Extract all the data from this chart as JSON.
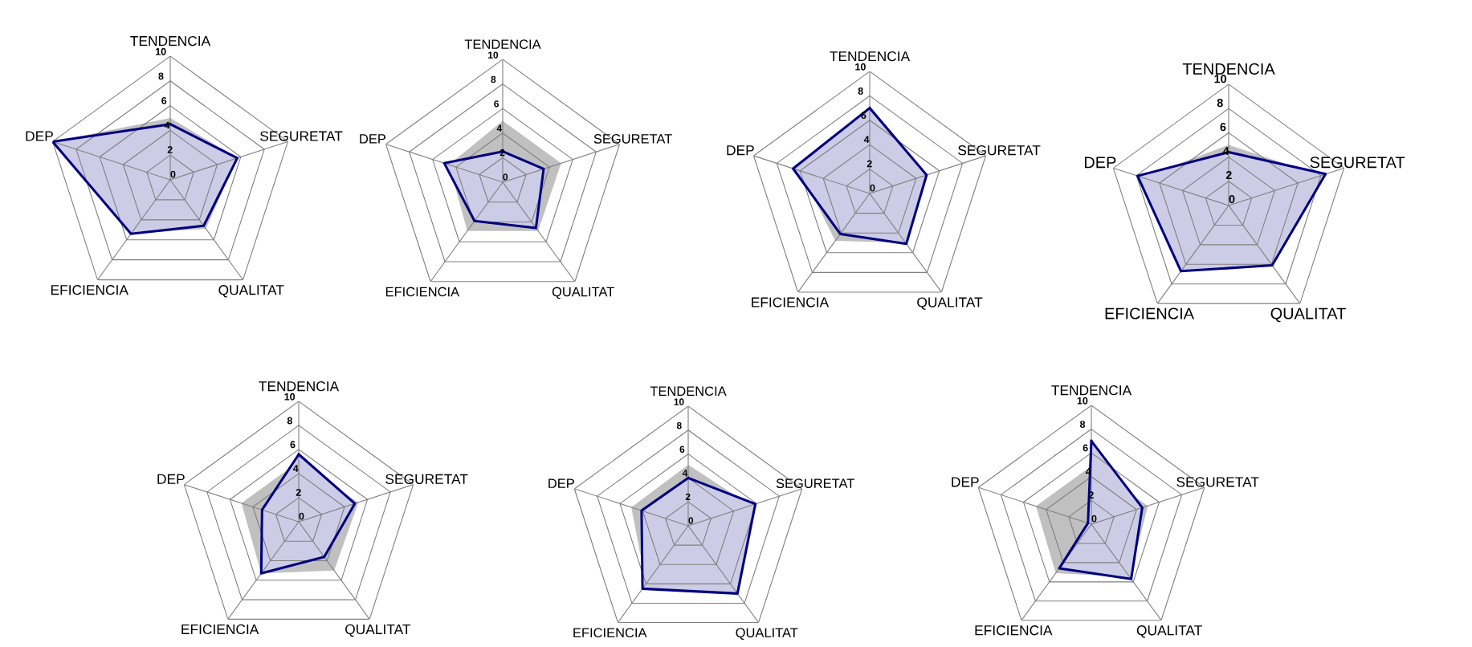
{
  "chart_data": [
    {
      "type": "radar",
      "categories": [
        "TENDENCIA",
        "SEGURETAT",
        "QUALITAT",
        "EFICIENCIA",
        "DEP"
      ],
      "ylim": [
        0,
        10
      ],
      "yticks": [
        0,
        2,
        4,
        6,
        8,
        10
      ],
      "series": [
        {
          "color": "#c0c0c0",
          "values": [
            5.0,
            5.7,
            4.9,
            5.4,
            10
          ]
        },
        {
          "color": "#000080",
          "values": [
            4.5,
            5.7,
            4.6,
            5.4,
            10
          ]
        }
      ]
    },
    {
      "type": "radar",
      "categories": [
        "TENDENCIA",
        "SEGURETAT",
        "QUALITAT",
        "EFICIENCIA",
        "DEP"
      ],
      "ylim": [
        0,
        10
      ],
      "yticks": [
        0,
        2,
        4,
        6,
        8,
        10
      ],
      "series": [
        {
          "color": "#c0c0c0",
          "values": [
            5.0,
            5.0,
            4.9,
            4.9,
            4.6
          ]
        },
        {
          "color": "#000080",
          "values": [
            2.5,
            3.5,
            4.6,
            3.9,
            5.0
          ]
        }
      ]
    },
    {
      "type": "radar",
      "categories": [
        "TENDENCIA",
        "SEGURETAT",
        "QUALITAT",
        "EFICIENCIA",
        "DEP"
      ],
      "ylim": [
        0,
        10
      ],
      "yticks": [
        0,
        2,
        4,
        6,
        8,
        10
      ],
      "series": [
        {
          "color": "#c0c0c0",
          "values": [
            6.0,
            4.5,
            5.0,
            4.8,
            6.0
          ]
        },
        {
          "color": "#000080",
          "values": [
            7.0,
            4.9,
            5.1,
            4.1,
            6.6
          ]
        }
      ]
    },
    {
      "type": "radar",
      "categories": [
        "TENDENCIA",
        "SEGURETAT",
        "QUALITAT",
        "EFICIENCIA",
        "DEP"
      ],
      "ylim": [
        0,
        10
      ],
      "yticks": [
        0,
        2,
        4,
        6,
        8,
        10
      ],
      "series": [
        {
          "color": "#c0c0c0",
          "values": [
            5.0,
            8.0,
            6.0,
            6.5,
            7.5
          ]
        },
        {
          "color": "#000080",
          "values": [
            4.4,
            8.4,
            6.1,
            6.7,
            7.9
          ]
        }
      ]
    },
    {
      "type": "radar",
      "categories": [
        "TENDENCIA",
        "SEGURETAT",
        "QUALITAT",
        "EFICIENCIA",
        "DEP"
      ],
      "ylim": [
        0,
        10
      ],
      "yticks": [
        0,
        2,
        4,
        6,
        8,
        10
      ],
      "series": [
        {
          "color": "#c0c0c0",
          "values": [
            5.0,
            5.2,
            5.0,
            5.3,
            5.0
          ]
        },
        {
          "color": "#000080",
          "values": [
            5.6,
            4.9,
            3.6,
            5.3,
            3.2
          ]
        }
      ]
    },
    {
      "type": "radar",
      "categories": [
        "TENDENCIA",
        "SEGURETAT",
        "QUALITAT",
        "EFICIENCIA",
        "DEP"
      ],
      "ylim": [
        0,
        10
      ],
      "yticks": [
        0,
        2,
        4,
        6,
        8,
        10
      ],
      "series": [
        {
          "color": "#c0c0c0",
          "values": [
            5.1,
            5.5,
            6.5,
            6.0,
            5.0
          ]
        },
        {
          "color": "#000080",
          "values": [
            4.0,
            5.9,
            7.0,
            6.5,
            4.1
          ]
        }
      ]
    },
    {
      "type": "radar",
      "categories": [
        "TENDENCIA",
        "SEGURETAT",
        "QUALITAT",
        "EFICIENCIA",
        "DEP"
      ],
      "ylim": [
        0,
        10
      ],
      "yticks": [
        0,
        2,
        4,
        6,
        8,
        10
      ],
      "series": [
        {
          "color": "#c0c0c0",
          "values": [
            4.9,
            5.0,
            5.5,
            5.1,
            4.9
          ]
        },
        {
          "color": "#000080",
          "values": [
            7.0,
            4.5,
            5.7,
            4.6,
            0.3
          ]
        }
      ]
    }
  ]
}
